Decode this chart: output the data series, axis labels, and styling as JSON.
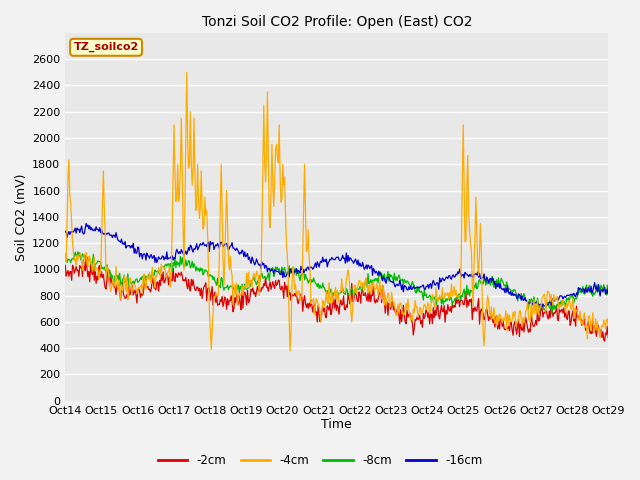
{
  "title": "Tonzi Soil CO2 Profile: Open (East) CO2",
  "ylabel": "Soil CO2 (mV)",
  "xlabel": "Time",
  "box_label": "TZ_soilco2",
  "box_facecolor": "#ffffcc",
  "box_edgecolor": "#cc8800",
  "box_textcolor": "#aa0000",
  "ylim": [
    0,
    2800
  ],
  "yticks": [
    0,
    200,
    400,
    600,
    800,
    1000,
    1200,
    1400,
    1600,
    1800,
    2000,
    2200,
    2400,
    2600
  ],
  "xtick_labels": [
    "Oct 14",
    "Oct 15",
    "Oct 16",
    "Oct 17",
    "Oct 18",
    "Oct 19",
    "Oct 20",
    "Oct 21",
    "Oct 22",
    "Oct 23",
    "Oct 24",
    "Oct 25",
    "Oct 26",
    "Oct 27",
    "Oct 28",
    "Oct 29"
  ],
  "series_colors": [
    "#dd0000",
    "#ffaa00",
    "#00bb00",
    "#0000cc"
  ],
  "series_labels": [
    "-2cm",
    "-4cm",
    "-8cm",
    "-16cm"
  ],
  "bg_color": "#f2f2f2",
  "plot_bg_color": "#e8e8e8",
  "grid_color": "#ffffff",
  "n_days": 15,
  "figsize": [
    6.4,
    4.8
  ],
  "dpi": 100
}
